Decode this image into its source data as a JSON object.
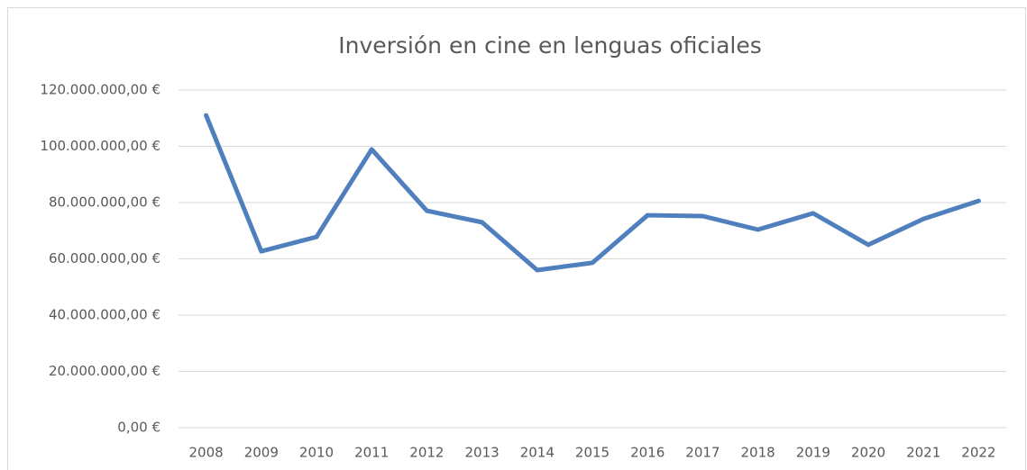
{
  "chart_data": {
    "type": "line",
    "title": "Inversión en cine en lenguas oficiales",
    "categories": [
      "2008",
      "2009",
      "2010",
      "2011",
      "2012",
      "2013",
      "2014",
      "2015",
      "2016",
      "2017",
      "2018",
      "2019",
      "2020",
      "2021",
      "2022"
    ],
    "series": [
      {
        "name": "Inversión",
        "color": "#4f7fbd",
        "values": [
          111000000,
          62700000,
          67800000,
          98900000,
          77100000,
          73000000,
          56000000,
          58600000,
          75500000,
          75200000,
          70400000,
          76200000,
          65000000,
          74200000,
          80600000
        ]
      }
    ],
    "ylim": [
      0,
      120000000
    ],
    "yticks": [
      {
        "value": 0,
        "label": "0,00 €"
      },
      {
        "value": 20000000,
        "label": "20.000.000,00 €"
      },
      {
        "value": 40000000,
        "label": "40.000.000,00 €"
      },
      {
        "value": 60000000,
        "label": "60.000.000,00 €"
      },
      {
        "value": 80000000,
        "label": "80.000.000,00 €"
      },
      {
        "value": 100000000,
        "label": "100.000.000,00 €"
      },
      {
        "value": 120000000,
        "label": "120.000.000,00 €"
      }
    ],
    "grid": true
  }
}
